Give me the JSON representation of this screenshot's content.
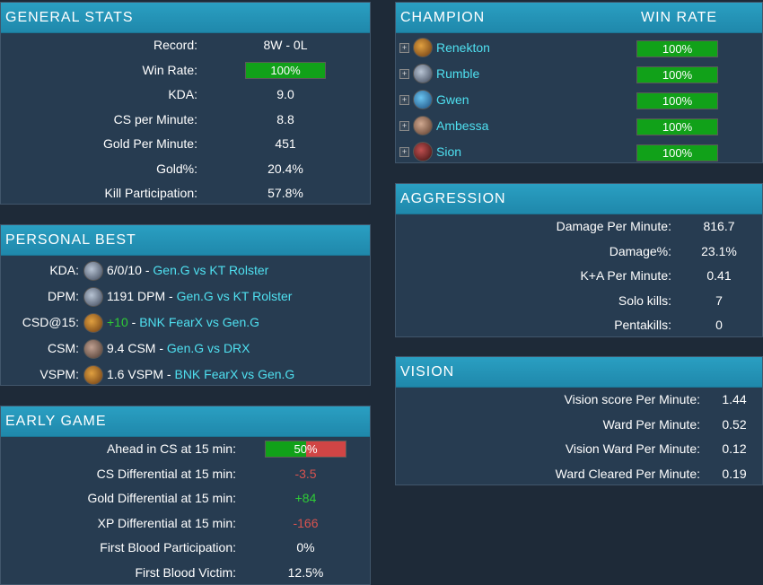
{
  "general": {
    "title": "GENERAL STATS",
    "rows": [
      {
        "label": "Record:",
        "value": "8W - 0L"
      },
      {
        "label": "Win Rate:",
        "value": "100%"
      },
      {
        "label": "KDA:",
        "value": "9.0"
      },
      {
        "label": "CS per Minute:",
        "value": "8.8"
      },
      {
        "label": "Gold Per Minute:",
        "value": "451"
      },
      {
        "label": "Gold%:",
        "value": "20.4%"
      },
      {
        "label": "Kill Participation:",
        "value": "57.8%"
      }
    ]
  },
  "personal_best": {
    "title": "PERSONAL BEST",
    "rows": [
      {
        "label": "KDA:",
        "stat": "6/0/10",
        "sep": " - ",
        "match": "Gen.G vs KT Rolster",
        "icon": "champion-portrait-icon"
      },
      {
        "label": "DPM:",
        "stat": "1191 DPM",
        "sep": " - ",
        "match": "Gen.G vs KT Rolster",
        "icon": "champion-portrait-icon"
      },
      {
        "label": "CSD@15:",
        "stat": "+10",
        "sep": " - ",
        "match": "BNK FearX vs Gen.G",
        "icon": "champion-portrait-icon"
      },
      {
        "label": "CSM:",
        "stat": "9.4 CSM",
        "sep": " - ",
        "match": "Gen.G vs DRX",
        "icon": "champion-portrait-icon"
      },
      {
        "label": "VSPM:",
        "stat": "1.6 VSPM",
        "sep": " - ",
        "match": "BNK FearX vs Gen.G",
        "icon": "champion-portrait-icon"
      }
    ]
  },
  "early_game": {
    "title": "EARLY GAME",
    "rows": [
      {
        "label": "Ahead in CS at 15 min:",
        "value": "50%"
      },
      {
        "label": "CS Differential at 15 min:",
        "value": "-3.5"
      },
      {
        "label": "Gold Differential at 15 min:",
        "value": "+84"
      },
      {
        "label": "XP Differential at 15 min:",
        "value": "-166"
      },
      {
        "label": "First Blood Participation:",
        "value": "0%"
      },
      {
        "label": "First Blood Victim:",
        "value": "12.5%"
      }
    ],
    "ahead_fraction": 0.5
  },
  "champion": {
    "title": "CHAMPION",
    "winrate_header": "WIN RATE",
    "rows": [
      {
        "name": "Renekton",
        "winrate": "100%",
        "icon": "renekton-icon"
      },
      {
        "name": "Rumble",
        "winrate": "100%",
        "icon": "rumble-icon"
      },
      {
        "name": "Gwen",
        "winrate": "100%",
        "icon": "gwen-icon"
      },
      {
        "name": "Ambessa",
        "winrate": "100%",
        "icon": "ambessa-icon"
      },
      {
        "name": "Sion",
        "winrate": "100%",
        "icon": "sion-icon"
      }
    ]
  },
  "aggression": {
    "title": "AGGRESSION",
    "rows": [
      {
        "label": "Damage Per Minute:",
        "value": "816.7"
      },
      {
        "label": "Damage%:",
        "value": "23.1%"
      },
      {
        "label": "K+A Per Minute:",
        "value": "0.41"
      },
      {
        "label": "Solo kills:",
        "value": "7"
      },
      {
        "label": "Pentakills:",
        "value": "0"
      }
    ]
  },
  "vision": {
    "title": "VISION",
    "rows": [
      {
        "label": "Vision score Per Minute:",
        "value": "1.44"
      },
      {
        "label": "Ward Per Minute:",
        "value": "0.52"
      },
      {
        "label": "Vision Ward Per Minute:",
        "value": "0.12"
      },
      {
        "label": "Ward Cleared Per Minute:",
        "value": "0.19"
      }
    ]
  },
  "colors": {
    "header": "#2a9fc2",
    "panel": "#273c51",
    "green": "#11a119",
    "red": "#d04545",
    "link": "#4fe0f0"
  }
}
